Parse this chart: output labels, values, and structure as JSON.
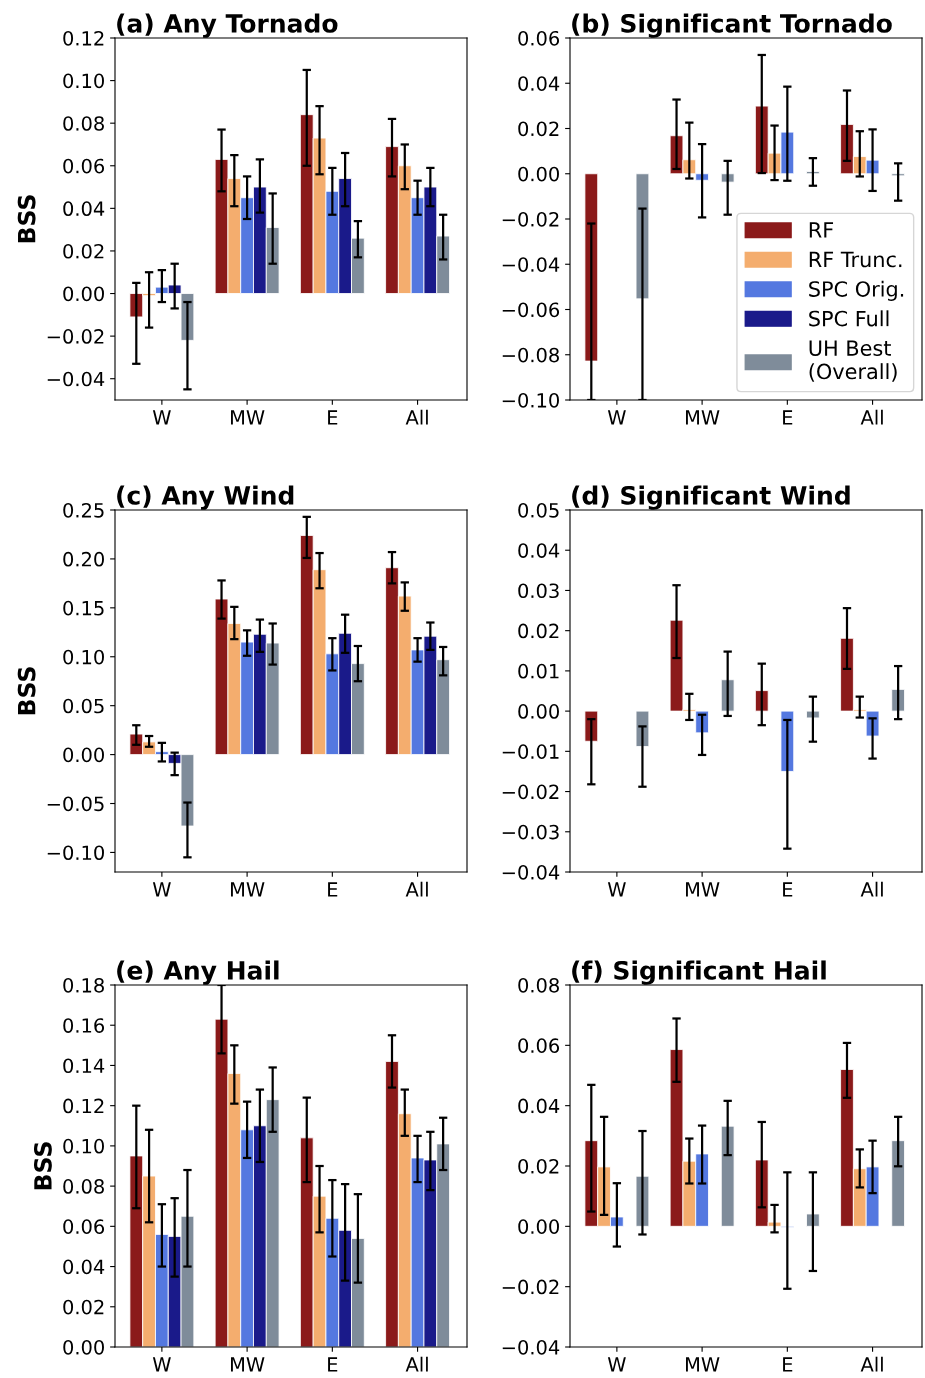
{
  "chart_data": [
    {
      "type": "bar",
      "title": "(a) Any Tornado",
      "ylabel": "BSS",
      "categories": [
        "W",
        "MW",
        "E",
        "All"
      ],
      "ylim": [
        -0.05,
        0.12
      ],
      "yticks": [
        {
          "value": -0.04,
          "label": "−0.04"
        },
        {
          "value": -0.02,
          "label": "−0.02"
        },
        {
          "value": 0,
          "label": "0.00"
        },
        {
          "value": 0.02,
          "label": "0.02"
        },
        {
          "value": 0.04,
          "label": "0.04"
        },
        {
          "value": 0.06,
          "label": "0.06"
        },
        {
          "value": 0.08,
          "label": "0.08"
        },
        {
          "value": 0.1,
          "label": "0.10"
        },
        {
          "value": 0.12,
          "label": "0.12"
        }
      ],
      "series": [
        {
          "color": "#8b1a1a",
          "values": [
            -0.011,
            0.063,
            0.084,
            0.069
          ],
          "errors": [
            [
              -0.033,
              0.005
            ],
            [
              0.048,
              0.077
            ],
            [
              0.06,
              0.105
            ],
            [
              0.055,
              0.082
            ]
          ]
        },
        {
          "color": "#f4ad6e",
          "values": [
            -0.001,
            0.054,
            0.073,
            0.06
          ],
          "errors": [
            [
              -0.016,
              0.01
            ],
            [
              0.041,
              0.065
            ],
            [
              0.056,
              0.088
            ],
            [
              0.049,
              0.07
            ]
          ]
        },
        {
          "color": "#5478e0",
          "values": [
            0.003,
            0.045,
            0.048,
            0.045
          ],
          "errors": [
            [
              -0.004,
              0.011
            ],
            [
              0.035,
              0.055
            ],
            [
              0.037,
              0.059
            ],
            [
              0.037,
              0.053
            ]
          ]
        },
        {
          "color": "#1a1a8a",
          "values": [
            0.004,
            0.05,
            0.054,
            0.05
          ],
          "errors": [
            [
              -0.007,
              0.014
            ],
            [
              0.038,
              0.063
            ],
            [
              0.041,
              0.066
            ],
            [
              0.041,
              0.059
            ]
          ]
        },
        {
          "color": "#7f8c9a",
          "values": [
            -0.022,
            0.031,
            0.026,
            0.027
          ],
          "errors": [
            [
              -0.045,
              -0.004
            ],
            [
              0.014,
              0.047
            ],
            [
              0.017,
              0.034
            ],
            [
              0.016,
              0.037
            ]
          ]
        }
      ]
    },
    {
      "type": "bar",
      "title": "(b) Significant Tornado",
      "categories": [
        "W",
        "MW",
        "E",
        "All"
      ],
      "legend": "lower right",
      "ylim": [
        -0.1,
        0.06
      ],
      "yticks": [
        {
          "value": -0.1,
          "label": "−0.10"
        },
        {
          "value": -0.08,
          "label": "−0.08"
        },
        {
          "value": -0.06,
          "label": "−0.06"
        },
        {
          "value": -0.04,
          "label": "−0.04"
        },
        {
          "value": -0.02,
          "label": "−0.02"
        },
        {
          "value": 0,
          "label": "0.00"
        },
        {
          "value": 0.02,
          "label": "0.02"
        },
        {
          "value": 0.04,
          "label": "0.04"
        },
        {
          "value": 0.06,
          "label": "0.06"
        }
      ],
      "series": [
        {
          "name": "RF",
          "color": "#8b1a1a",
          "values": [
            -0.0828,
            0.0168,
            0.0299,
            0.0218
          ],
          "errors": [
            [
              -0.1,
              -0.022
            ],
            [
              0.0021,
              0.0328
            ],
            [
              0.0003,
              0.0525
            ],
            [
              0.0057,
              0.0368
            ]
          ]
        },
        {
          "name": "RF Trunc.",
          "color": "#f4ad6e",
          "values": [
            null,
            0.0062,
            0.0091,
            0.0076
          ],
          "errors": [
            null,
            [
              -0.0021,
              0.0226
            ],
            [
              -0.0028,
              0.0213
            ],
            [
              -0.0012,
              0.0188
            ]
          ]
        },
        {
          "name": "SPC Orig.",
          "color": "#5478e0",
          "values": [
            null,
            -0.0029,
            0.0184,
            0.006
          ],
          "errors": [
            null,
            [
              -0.0193,
              0.0131
            ],
            [
              -0.0031,
              0.0385
            ],
            [
              -0.0076,
              0.0196
            ]
          ]
        },
        {
          "name": "SPC Full",
          "color": "#1a1a8a",
          "values": [
            null,
            null,
            null,
            null
          ],
          "errors": [
            null,
            null,
            null,
            null
          ]
        },
        {
          "name": "UH Best\n(Overall)",
          "color": "#7f8c9a",
          "values": [
            -0.0553,
            -0.0037,
            0.001,
            -0.0009
          ],
          "errors": [
            [
              -0.1,
              -0.0154
            ],
            [
              -0.0181,
              0.0057
            ],
            [
              -0.0053,
              0.0069
            ],
            [
              -0.0119,
              0.0046
            ]
          ]
        }
      ]
    },
    {
      "type": "bar",
      "title": "(c) Any Wind",
      "ylabel": "BSS",
      "categories": [
        "W",
        "MW",
        "E",
        "All"
      ],
      "ylim": [
        -0.12,
        0.25
      ],
      "yticks": [
        {
          "value": -0.1,
          "label": "−0.10"
        },
        {
          "value": -0.05,
          "label": "−0.05"
        },
        {
          "value": 0,
          "label": "0.00"
        },
        {
          "value": 0.05,
          "label": "0.05"
        },
        {
          "value": 0.1,
          "label": "0.10"
        },
        {
          "value": 0.15,
          "label": "0.15"
        },
        {
          "value": 0.2,
          "label": "0.20"
        },
        {
          "value": 0.25,
          "label": "0.25"
        }
      ],
      "series": [
        {
          "color": "#8b1a1a",
          "values": [
            0.021,
            0.159,
            0.224,
            0.191
          ],
          "errors": [
            [
              0.01,
              0.03
            ],
            [
              0.139,
              0.178
            ],
            [
              0.201,
              0.243
            ],
            [
              0.175,
              0.207
            ]
          ]
        },
        {
          "color": "#f4ad6e",
          "values": [
            0.013,
            0.134,
            0.189,
            0.162
          ],
          "errors": [
            [
              0.008,
              0.019
            ],
            [
              0.118,
              0.151
            ],
            [
              0.17,
              0.206
            ],
            [
              0.147,
              0.176
            ]
          ]
        },
        {
          "color": "#5478e0",
          "values": [
            0.003,
            0.115,
            0.103,
            0.107
          ],
          "errors": [
            [
              -0.007,
              0.012
            ],
            [
              0.101,
              0.127
            ],
            [
              0.086,
              0.119
            ],
            [
              0.095,
              0.119
            ]
          ]
        },
        {
          "color": "#1a1a8a",
          "values": [
            -0.009,
            0.123,
            0.124,
            0.121
          ],
          "errors": [
            [
              -0.021,
              0.002
            ],
            [
              0.105,
              0.138
            ],
            [
              0.104,
              0.143
            ],
            [
              0.107,
              0.135
            ]
          ]
        },
        {
          "color": "#7f8c9a",
          "values": [
            -0.073,
            0.114,
            0.093,
            0.097
          ],
          "errors": [
            [
              -0.105,
              -0.049
            ],
            [
              0.092,
              0.134
            ],
            [
              0.075,
              0.111
            ],
            [
              0.081,
              0.11
            ]
          ]
        }
      ]
    },
    {
      "type": "bar",
      "title": "(d) Significant Wind",
      "categories": [
        "W",
        "MW",
        "E",
        "All"
      ],
      "ylim": [
        -0.04,
        0.05
      ],
      "yticks": [
        {
          "value": -0.04,
          "label": "−0.04"
        },
        {
          "value": -0.03,
          "label": "−0.03"
        },
        {
          "value": -0.02,
          "label": "−0.02"
        },
        {
          "value": -0.01,
          "label": "−0.01"
        },
        {
          "value": 0,
          "label": "0.00"
        },
        {
          "value": 0.01,
          "label": "0.01"
        },
        {
          "value": 0.02,
          "label": "0.02"
        },
        {
          "value": 0.03,
          "label": "0.03"
        },
        {
          "value": 0.04,
          "label": "0.04"
        },
        {
          "value": 0.05,
          "label": "0.05"
        }
      ],
      "series": [
        {
          "color": "#8b1a1a",
          "values": [
            -0.0075,
            0.0226,
            0.0051,
            0.0181
          ],
          "errors": [
            [
              -0.0182,
              -0.002
            ],
            [
              0.0132,
              0.0313
            ],
            [
              -0.0035,
              0.0118
            ],
            [
              0.0105,
              0.0256
            ]
          ]
        },
        {
          "color": "#f4ad6e",
          "values": [
            null,
            0.0004,
            null,
            0.0004
          ],
          "errors": [
            null,
            [
              -0.0022,
              0.0043
            ],
            null,
            [
              -0.0016,
              0.0036
            ]
          ]
        },
        {
          "color": "#5478e0",
          "values": [
            null,
            -0.0054,
            -0.015,
            -0.0062
          ],
          "errors": [
            null,
            [
              -0.0109,
              -0.0009
            ],
            [
              -0.0342,
              -0.0022
            ],
            [
              -0.0118,
              -0.0018
            ]
          ]
        },
        {
          "color": "#1a1a8a",
          "values": [
            null,
            null,
            null,
            null
          ],
          "errors": [
            null,
            null,
            null,
            null
          ]
        },
        {
          "color": "#7f8c9a",
          "values": [
            -0.0088,
            0.0078,
            -0.0017,
            0.0054
          ],
          "errors": [
            [
              -0.0188,
              -0.0038
            ],
            [
              -0.0012,
              0.0148
            ],
            [
              -0.0076,
              0.0036
            ],
            [
              -0.002,
              0.0112
            ]
          ]
        }
      ]
    },
    {
      "type": "bar",
      "title": "(e) Any Hail",
      "ylabel": "BSS",
      "categories": [
        "W",
        "MW",
        "E",
        "All"
      ],
      "ylim": [
        0,
        0.18
      ],
      "yticks": [
        {
          "value": 0,
          "label": "0.00"
        },
        {
          "value": 0.02,
          "label": "0.02"
        },
        {
          "value": 0.04,
          "label": "0.04"
        },
        {
          "value": 0.06,
          "label": "0.06"
        },
        {
          "value": 0.08,
          "label": "0.08"
        },
        {
          "value": 0.1,
          "label": "0.10"
        },
        {
          "value": 0.12,
          "label": "0.12"
        },
        {
          "value": 0.14,
          "label": "0.14"
        },
        {
          "value": 0.16,
          "label": "0.16"
        },
        {
          "value": 0.18,
          "label": "0.18"
        }
      ],
      "series": [
        {
          "color": "#8b1a1a",
          "values": [
            0.095,
            0.163,
            0.104,
            0.142
          ],
          "errors": [
            [
              0.069,
              0.12
            ],
            [
              0.146,
              0.18
            ],
            [
              0.082,
              0.124
            ],
            [
              0.129,
              0.155
            ]
          ]
        },
        {
          "color": "#f4ad6e",
          "values": [
            0.085,
            0.136,
            0.075,
            0.116
          ],
          "errors": [
            [
              0.062,
              0.108
            ],
            [
              0.121,
              0.15
            ],
            [
              0.057,
              0.09
            ],
            [
              0.105,
              0.128
            ]
          ]
        },
        {
          "color": "#5478e0",
          "values": [
            0.056,
            0.108,
            0.064,
            0.094
          ],
          "errors": [
            [
              0.04,
              0.071
            ],
            [
              0.094,
              0.122
            ],
            [
              0.045,
              0.083
            ],
            [
              0.082,
              0.105
            ]
          ]
        },
        {
          "color": "#1a1a8a",
          "values": [
            0.055,
            0.11,
            0.058,
            0.093
          ],
          "errors": [
            [
              0.035,
              0.074
            ],
            [
              0.092,
              0.128
            ],
            [
              0.033,
              0.081
            ],
            [
              0.078,
              0.107
            ]
          ]
        },
        {
          "color": "#7f8c9a",
          "values": [
            0.065,
            0.123,
            0.054,
            0.101
          ],
          "errors": [
            [
              0.04,
              0.088
            ],
            [
              0.107,
              0.139
            ],
            [
              0.032,
              0.076
            ],
            [
              0.088,
              0.114
            ]
          ]
        }
      ]
    },
    {
      "type": "bar",
      "title": "(f) Significant Hail",
      "categories": [
        "W",
        "MW",
        "E",
        "All"
      ],
      "ylim": [
        -0.04,
        0.08
      ],
      "yticks": [
        {
          "value": -0.04,
          "label": "−0.04"
        },
        {
          "value": -0.02,
          "label": "−0.02"
        },
        {
          "value": 0,
          "label": "0.00"
        },
        {
          "value": 0.02,
          "label": "0.02"
        },
        {
          "value": 0.04,
          "label": "0.04"
        },
        {
          "value": 0.06,
          "label": "0.06"
        },
        {
          "value": 0.08,
          "label": "0.08"
        }
      ],
      "series": [
        {
          "color": "#8b1a1a",
          "values": [
            0.0284,
            0.0586,
            0.022,
            0.052
          ],
          "errors": [
            [
              0.0049,
              0.0469
            ],
            [
              0.0479,
              0.0689
            ],
            [
              0.0063,
              0.0346
            ],
            [
              0.0426,
              0.0608
            ]
          ]
        },
        {
          "color": "#f4ad6e",
          "values": [
            0.0197,
            0.0216,
            0.0014,
            0.0191
          ],
          "errors": [
            [
              0.0038,
              0.0363
            ],
            [
              0.0142,
              0.0291
            ],
            [
              -0.002,
              0.0071
            ],
            [
              0.0129,
              0.0255
            ]
          ]
        },
        {
          "color": "#5478e0",
          "values": [
            0.0031,
            0.024,
            -0.0003,
            0.0197
          ],
          "errors": [
            [
              -0.0067,
              0.0143
            ],
            [
              0.0142,
              0.0334
            ],
            [
              -0.0207,
              0.0179
            ],
            [
              0.011,
              0.0284
            ]
          ]
        },
        {
          "color": "#1a1a8a",
          "values": [
            null,
            null,
            null,
            null
          ],
          "errors": [
            null,
            null,
            null,
            null
          ]
        },
        {
          "color": "#7f8c9a",
          "values": [
            0.0166,
            0.0332,
            0.0041,
            0.0284
          ],
          "errors": [
            [
              -0.0027,
              0.0316
            ],
            [
              0.0236,
              0.0416
            ],
            [
              -0.0148,
              0.0179
            ],
            [
              0.0199,
              0.0363
            ]
          ]
        }
      ]
    }
  ]
}
